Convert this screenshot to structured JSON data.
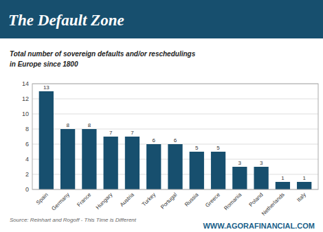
{
  "chart_data": {
    "type": "bar",
    "title": "The Default Zone",
    "subtitle": [
      "Total number of sovereign defaults and/or reschedulings",
      "in Europe since 1800"
    ],
    "annotations": [
      "Source: Reinhart and Rogoff - This Time is Different",
      "WWW.AGORAFINANCIAL.COM"
    ],
    "categories": [
      "Spain",
      "Germany",
      "France",
      "Hungary",
      "Austria",
      "Turkey",
      "Portugal",
      "Russia",
      "Greece",
      "Romania",
      "Poland",
      "Netherlands",
      "Italy"
    ],
    "values": [
      13,
      8,
      8,
      7,
      7,
      6,
      6,
      5,
      5,
      3,
      3,
      1,
      1
    ],
    "color": "#174f6e",
    "ylim": [
      0,
      14
    ],
    "yticks": [
      0,
      2,
      4,
      6,
      8,
      10,
      12,
      14
    ],
    "grid": true,
    "data_labels": true
  }
}
